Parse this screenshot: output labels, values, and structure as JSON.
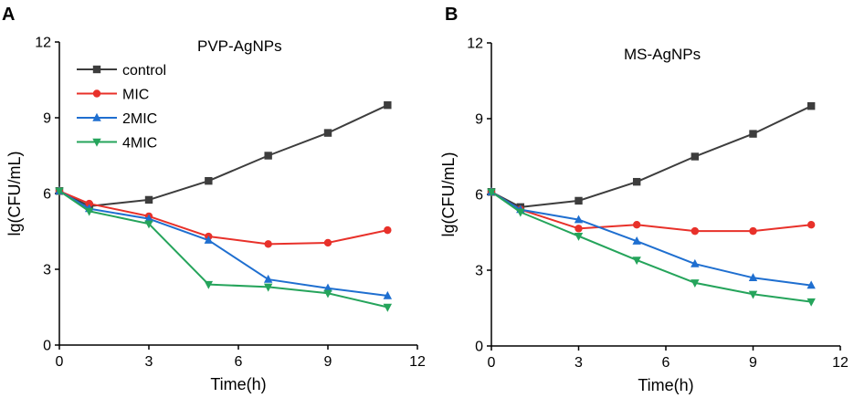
{
  "colors": {
    "control": "#3d3d3d",
    "MIC": "#e8312a",
    "2MIC": "#1f6fd0",
    "4MIC": "#25a45b"
  },
  "markers": {
    "control": "square",
    "MIC": "circle",
    "2MIC": "triangle-up",
    "4MIC": "triangle-down"
  },
  "chart_data": [
    {
      "panel": "A",
      "type": "line",
      "title": "PVP-AgNPs",
      "xlabel": "Time(h)",
      "ylabel": "lg(CFU/mL)",
      "xlim": [
        0,
        12
      ],
      "ylim": [
        0,
        12
      ],
      "xticks": [
        0,
        3,
        6,
        9,
        12
      ],
      "yticks": [
        0,
        3,
        6,
        9,
        12
      ],
      "x": [
        0,
        1,
        3,
        5,
        7,
        9,
        11
      ],
      "legend": "top-left",
      "series": [
        {
          "name": "control",
          "values": [
            6.1,
            5.5,
            5.75,
            6.5,
            7.5,
            8.4,
            9.5
          ]
        },
        {
          "name": "MIC",
          "values": [
            6.1,
            5.6,
            5.1,
            4.3,
            4.0,
            4.05,
            4.55
          ]
        },
        {
          "name": "2MIC",
          "values": [
            6.1,
            5.4,
            5.0,
            4.15,
            2.6,
            2.25,
            1.95
          ]
        },
        {
          "name": "4MIC",
          "values": [
            6.1,
            5.3,
            4.8,
            2.4,
            2.3,
            2.05,
            1.5
          ]
        }
      ]
    },
    {
      "panel": "B",
      "type": "line",
      "title": "MS-AgNPs",
      "xlabel": "Time(h)",
      "ylabel": "lg(CFU/mL)",
      "xlim": [
        0,
        12
      ],
      "ylim": [
        0,
        12
      ],
      "xticks": [
        0,
        3,
        6,
        9,
        12
      ],
      "yticks": [
        0,
        3,
        6,
        9,
        12
      ],
      "x": [
        0,
        1,
        3,
        5,
        7,
        9,
        11
      ],
      "legend": "none",
      "series": [
        {
          "name": "control",
          "values": [
            6.1,
            5.5,
            5.75,
            6.5,
            7.5,
            8.4,
            9.5
          ]
        },
        {
          "name": "MIC",
          "values": [
            6.1,
            5.4,
            4.65,
            4.8,
            4.55,
            4.55,
            4.8
          ]
        },
        {
          "name": "2MIC",
          "values": [
            6.1,
            5.4,
            5.0,
            4.15,
            3.25,
            2.7,
            2.4
          ]
        },
        {
          "name": "4MIC",
          "values": [
            6.1,
            5.3,
            4.35,
            3.4,
            2.5,
            2.05,
            1.75
          ]
        }
      ]
    }
  ]
}
